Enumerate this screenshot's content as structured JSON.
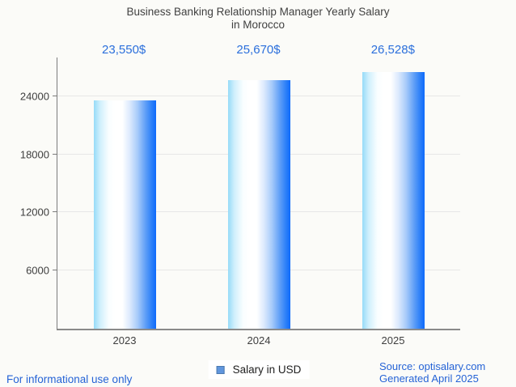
{
  "header": {
    "title": "Business Banking Relationship Manager Yearly Salary\nin Morocco"
  },
  "chart_data": {
    "type": "bar",
    "title": "Business Banking Relationship Manager Yearly Salary in Morocco",
    "categories": [
      "2023",
      "2024",
      "2025"
    ],
    "values": [
      23550,
      25670,
      26528
    ],
    "value_labels": [
      "23,550$",
      "25,670$",
      "26,528$"
    ],
    "series": [
      {
        "name": "Salary in USD",
        "values": [
          23550,
          25670,
          26528
        ]
      }
    ],
    "xlabel": "",
    "ylabel": "",
    "ylim": [
      0,
      28000
    ],
    "yticks": [
      6000,
      12000,
      18000,
      24000
    ],
    "grid": true,
    "legend_position": "bottom",
    "colors": {
      "bar_gradient_left": "#96dbf8",
      "bar_gradient_mid": "#ffffff",
      "bar_gradient_right": "#0e6afb",
      "annotation_text": "#2b6fdc",
      "axis_text": "#3e3e3e",
      "title_text": "#414141",
      "gridline": "#e7e7e7",
      "axis_line": "#7c7c7c",
      "legend_marker": "#6096dd",
      "footer_link": "#2563d6",
      "background": "#fbfbf8"
    }
  },
  "legend": {
    "label": "Salary in USD"
  },
  "footer": {
    "left_note": "For informational use only",
    "source": "Source: optisalary.com",
    "generated": "Generated April 2025"
  }
}
